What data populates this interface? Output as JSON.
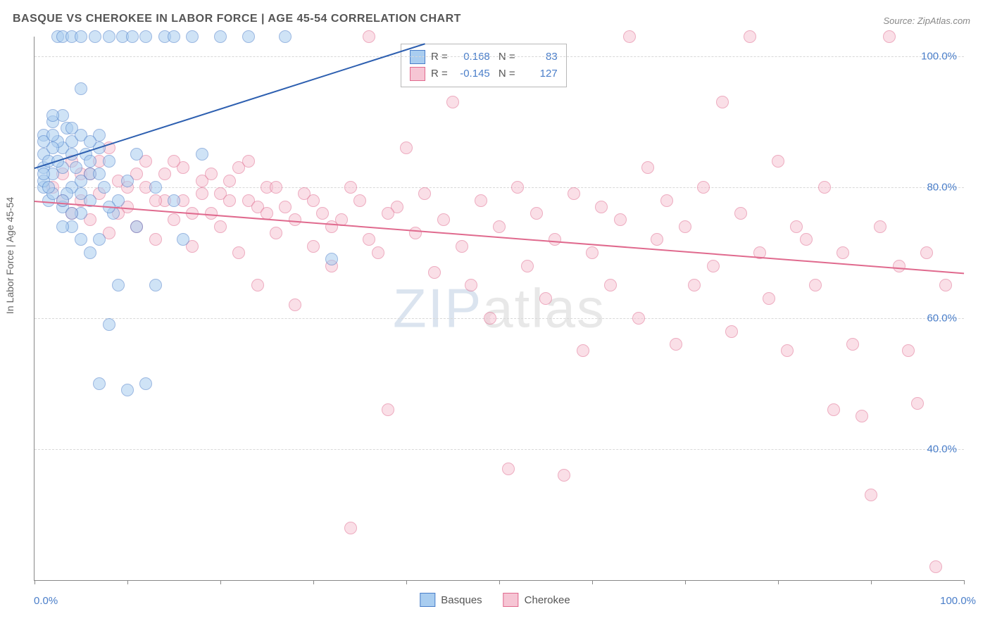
{
  "chart": {
    "type": "scatter",
    "title": "BASQUE VS CHEROKEE IN LABOR FORCE | AGE 45-54 CORRELATION CHART",
    "source": "Source: ZipAtlas.com",
    "y_axis_title": "In Labor Force | Age 45-54",
    "watermark_a": "ZIP",
    "watermark_b": "atlas",
    "background_color": "#ffffff",
    "grid_color": "#d8d8d8",
    "axis_color": "#888888",
    "title_color": "#555555",
    "title_fontsize": 16,
    "label_fontsize": 15,
    "tick_label_color": "#4a7ec9",
    "xlim": [
      0,
      100
    ],
    "ylim": [
      20,
      103
    ],
    "x_ticks": [
      0,
      10,
      20,
      30,
      40,
      50,
      60,
      70,
      80,
      90,
      100
    ],
    "x_tick_labels_shown": {
      "0": "0.0%",
      "100": "100.0%"
    },
    "y_gridlines": [
      40,
      60,
      80,
      100
    ],
    "y_tick_labels": {
      "40": "40.0%",
      "60": "60.0%",
      "80": "80.0%",
      "100": "100.0%"
    },
    "marker_radius": 8,
    "marker_opacity": 0.55,
    "series": [
      {
        "name": "Basques",
        "fill_color": "#a9cdf0",
        "stroke_color": "#4a7ec9",
        "R": "0.168",
        "N": "83",
        "trend": {
          "x1": 0,
          "y1": 83,
          "x2": 42,
          "y2": 102,
          "color": "#2d5fb0",
          "width": 2
        },
        "points": [
          [
            1,
            83
          ],
          [
            1,
            85
          ],
          [
            1,
            80
          ],
          [
            1,
            88
          ],
          [
            1.5,
            78
          ],
          [
            2,
            90
          ],
          [
            2,
            82
          ],
          [
            2.5,
            103
          ],
          [
            3,
            103
          ],
          [
            3,
            77
          ],
          [
            3,
            86
          ],
          [
            3.5,
            89
          ],
          [
            4,
            74
          ],
          [
            4,
            80
          ],
          [
            4,
            103
          ],
          [
            4.5,
            83
          ],
          [
            5,
            95
          ],
          [
            5,
            76
          ],
          [
            5,
            103
          ],
          [
            5.5,
            85
          ],
          [
            6,
            70
          ],
          [
            6,
            78
          ],
          [
            6,
            82
          ],
          [
            6.5,
            103
          ],
          [
            7,
            88
          ],
          [
            7,
            50
          ],
          [
            7,
            72
          ],
          [
            7.5,
            80
          ],
          [
            8,
            103
          ],
          [
            8,
            84
          ],
          [
            8,
            59
          ],
          [
            8.5,
            76
          ],
          [
            9,
            65
          ],
          [
            9,
            78
          ],
          [
            9.5,
            103
          ],
          [
            10,
            49
          ],
          [
            10,
            81
          ],
          [
            10.5,
            103
          ],
          [
            11,
            74
          ],
          [
            11,
            85
          ],
          [
            12,
            103
          ],
          [
            12,
            50
          ],
          [
            13,
            80
          ],
          [
            13,
            65
          ],
          [
            14,
            103
          ],
          [
            15,
            78
          ],
          [
            15,
            103
          ],
          [
            16,
            72
          ],
          [
            17,
            103
          ],
          [
            18,
            85
          ],
          [
            2,
            79
          ],
          [
            2.5,
            87
          ],
          [
            3,
            91
          ],
          [
            1,
            81
          ],
          [
            1.5,
            84
          ],
          [
            2,
            86
          ],
          [
            3.5,
            79
          ],
          [
            4,
            87
          ],
          [
            5,
            81
          ],
          [
            6,
            84
          ],
          [
            7,
            86
          ],
          [
            2,
            91
          ],
          [
            3,
            83
          ],
          [
            4,
            76
          ],
          [
            5,
            88
          ],
          [
            1,
            87
          ],
          [
            1.5,
            80
          ],
          [
            2.5,
            84
          ],
          [
            3,
            78
          ],
          [
            4,
            85
          ],
          [
            5,
            79
          ],
          [
            6,
            87
          ],
          [
            7,
            82
          ],
          [
            8,
            77
          ],
          [
            1,
            82
          ],
          [
            2,
            88
          ],
          [
            3,
            74
          ],
          [
            4,
            89
          ],
          [
            5,
            72
          ],
          [
            20,
            103
          ],
          [
            23,
            103
          ],
          [
            27,
            103
          ],
          [
            32,
            69
          ]
        ]
      },
      {
        "name": "Cherokee",
        "fill_color": "#f6c5d4",
        "stroke_color": "#e06a8e",
        "R": "-0.145",
        "N": "127",
        "trend": {
          "x1": 0,
          "y1": 78,
          "x2": 100,
          "y2": 67,
          "color": "#e06a8e",
          "width": 2
        },
        "points": [
          [
            2,
            80
          ],
          [
            3,
            78
          ],
          [
            4,
            76
          ],
          [
            5,
            82
          ],
          [
            6,
            75
          ],
          [
            7,
            79
          ],
          [
            8,
            73
          ],
          [
            9,
            81
          ],
          [
            10,
            77
          ],
          [
            11,
            74
          ],
          [
            12,
            80
          ],
          [
            13,
            72
          ],
          [
            14,
            78
          ],
          [
            15,
            75
          ],
          [
            16,
            83
          ],
          [
            17,
            71
          ],
          [
            18,
            79
          ],
          [
            19,
            76
          ],
          [
            20,
            74
          ],
          [
            21,
            81
          ],
          [
            22,
            70
          ],
          [
            23,
            78
          ],
          [
            24,
            65
          ],
          [
            25,
            80
          ],
          [
            26,
            73
          ],
          [
            27,
            77
          ],
          [
            28,
            62
          ],
          [
            29,
            79
          ],
          [
            30,
            71
          ],
          [
            31,
            76
          ],
          [
            32,
            68
          ],
          [
            33,
            75
          ],
          [
            34,
            28
          ],
          [
            35,
            78
          ],
          [
            36,
            103
          ],
          [
            37,
            70
          ],
          [
            38,
            46
          ],
          [
            39,
            77
          ],
          [
            40,
            86
          ],
          [
            41,
            73
          ],
          [
            42,
            79
          ],
          [
            43,
            67
          ],
          [
            44,
            75
          ],
          [
            45,
            93
          ],
          [
            46,
            71
          ],
          [
            47,
            65
          ],
          [
            48,
            78
          ],
          [
            49,
            60
          ],
          [
            50,
            74
          ],
          [
            51,
            37
          ],
          [
            52,
            80
          ],
          [
            53,
            68
          ],
          [
            54,
            76
          ],
          [
            55,
            63
          ],
          [
            56,
            72
          ],
          [
            57,
            36
          ],
          [
            58,
            79
          ],
          [
            59,
            55
          ],
          [
            60,
            70
          ],
          [
            61,
            77
          ],
          [
            62,
            65
          ],
          [
            63,
            75
          ],
          [
            64,
            103
          ],
          [
            65,
            60
          ],
          [
            66,
            83
          ],
          [
            67,
            72
          ],
          [
            68,
            78
          ],
          [
            69,
            56
          ],
          [
            70,
            74
          ],
          [
            71,
            65
          ],
          [
            72,
            80
          ],
          [
            73,
            68
          ],
          [
            74,
            93
          ],
          [
            75,
            58
          ],
          [
            76,
            76
          ],
          [
            77,
            103
          ],
          [
            78,
            70
          ],
          [
            79,
            63
          ],
          [
            80,
            84
          ],
          [
            81,
            55
          ],
          [
            82,
            74
          ],
          [
            83,
            72
          ],
          [
            84,
            65
          ],
          [
            85,
            80
          ],
          [
            86,
            46
          ],
          [
            87,
            70
          ],
          [
            88,
            56
          ],
          [
            89,
            45
          ],
          [
            90,
            33
          ],
          [
            91,
            74
          ],
          [
            92,
            103
          ],
          [
            93,
            68
          ],
          [
            94,
            55
          ],
          [
            95,
            47
          ],
          [
            96,
            70
          ],
          [
            97,
            22
          ],
          [
            98,
            65
          ],
          [
            4,
            84
          ],
          [
            6,
            82
          ],
          [
            8,
            86
          ],
          [
            10,
            80
          ],
          [
            12,
            84
          ],
          [
            14,
            82
          ],
          [
            16,
            78
          ],
          [
            18,
            81
          ],
          [
            20,
            79
          ],
          [
            22,
            83
          ],
          [
            24,
            77
          ],
          [
            26,
            80
          ],
          [
            28,
            75
          ],
          [
            30,
            78
          ],
          [
            32,
            74
          ],
          [
            34,
            80
          ],
          [
            36,
            72
          ],
          [
            38,
            76
          ],
          [
            3,
            82
          ],
          [
            5,
            78
          ],
          [
            7,
            84
          ],
          [
            9,
            76
          ],
          [
            11,
            82
          ],
          [
            13,
            78
          ],
          [
            15,
            84
          ],
          [
            17,
            76
          ],
          [
            19,
            82
          ],
          [
            21,
            78
          ],
          [
            23,
            84
          ],
          [
            25,
            76
          ]
        ]
      }
    ],
    "bottom_legend": [
      {
        "label": "Basques",
        "fill": "#a9cdf0",
        "stroke": "#4a7ec9"
      },
      {
        "label": "Cherokee",
        "fill": "#f6c5d4",
        "stroke": "#e06a8e"
      }
    ]
  }
}
